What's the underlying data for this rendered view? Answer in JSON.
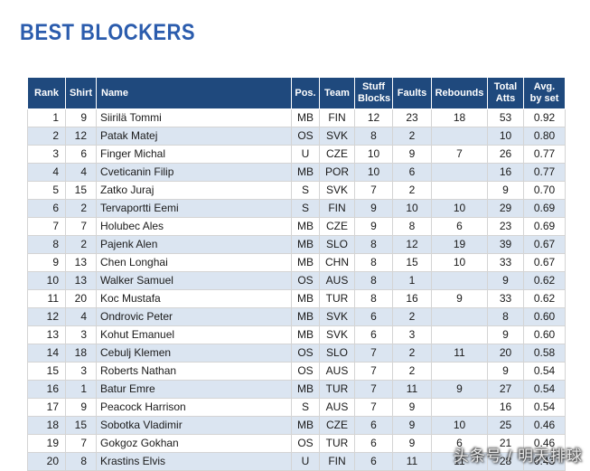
{
  "page_title": "BEST BLOCKERS",
  "colors": {
    "title_blue": "#2b5cad",
    "header_bg": "#1f497d",
    "stripe_bg": "#dbe5f1"
  },
  "table": {
    "columns": [
      "Rank",
      "Shirt",
      "Name",
      "Pos.",
      "Team",
      "Stuff\nBlocks",
      "Faults",
      "Rebounds",
      "Total\nAtts",
      "Avg.\nby set"
    ],
    "rows": [
      {
        "rank": "1",
        "shirt": "9",
        "name": "Siirilä Tommi",
        "pos": "MB",
        "team": "FIN",
        "stuff_blocks": "12",
        "faults": "23",
        "rebounds": "18",
        "total_atts": "53",
        "avg": "0.92"
      },
      {
        "rank": "2",
        "shirt": "12",
        "name": "Patak Matej",
        "pos": "OS",
        "team": "SVK",
        "stuff_blocks": "8",
        "faults": "2",
        "rebounds": "",
        "total_atts": "10",
        "avg": "0.80"
      },
      {
        "rank": "3",
        "shirt": "6",
        "name": "Finger Michal",
        "pos": "U",
        "team": "CZE",
        "stuff_blocks": "10",
        "faults": "9",
        "rebounds": "7",
        "total_atts": "26",
        "avg": "0.77"
      },
      {
        "rank": "4",
        "shirt": "4",
        "name": "Cveticanin Filip",
        "pos": "MB",
        "team": "POR",
        "stuff_blocks": "10",
        "faults": "6",
        "rebounds": "",
        "total_atts": "16",
        "avg": "0.77"
      },
      {
        "rank": "5",
        "shirt": "15",
        "name": "Zatko Juraj",
        "pos": "S",
        "team": "SVK",
        "stuff_blocks": "7",
        "faults": "2",
        "rebounds": "",
        "total_atts": "9",
        "avg": "0.70"
      },
      {
        "rank": "6",
        "shirt": "2",
        "name": "Tervaportti Eemi",
        "pos": "S",
        "team": "FIN",
        "stuff_blocks": "9",
        "faults": "10",
        "rebounds": "10",
        "total_atts": "29",
        "avg": "0.69"
      },
      {
        "rank": "7",
        "shirt": "7",
        "name": "Holubec Ales",
        "pos": "MB",
        "team": "CZE",
        "stuff_blocks": "9",
        "faults": "8",
        "rebounds": "6",
        "total_atts": "23",
        "avg": "0.69"
      },
      {
        "rank": "8",
        "shirt": "2",
        "name": "Pajenk Alen",
        "pos": "MB",
        "team": "SLO",
        "stuff_blocks": "8",
        "faults": "12",
        "rebounds": "19",
        "total_atts": "39",
        "avg": "0.67"
      },
      {
        "rank": "9",
        "shirt": "13",
        "name": "Chen Longhai",
        "pos": "MB",
        "team": "CHN",
        "stuff_blocks": "8",
        "faults": "15",
        "rebounds": "10",
        "total_atts": "33",
        "avg": "0.67"
      },
      {
        "rank": "10",
        "shirt": "13",
        "name": "Walker Samuel",
        "pos": "OS",
        "team": "AUS",
        "stuff_blocks": "8",
        "faults": "1",
        "rebounds": "",
        "total_atts": "9",
        "avg": "0.62"
      },
      {
        "rank": "11",
        "shirt": "20",
        "name": "Koc Mustafa",
        "pos": "MB",
        "team": "TUR",
        "stuff_blocks": "8",
        "faults": "16",
        "rebounds": "9",
        "total_atts": "33",
        "avg": "0.62"
      },
      {
        "rank": "12",
        "shirt": "4",
        "name": "Ondrovic Peter",
        "pos": "MB",
        "team": "SVK",
        "stuff_blocks": "6",
        "faults": "2",
        "rebounds": "",
        "total_atts": "8",
        "avg": "0.60"
      },
      {
        "rank": "13",
        "shirt": "3",
        "name": "Kohut Emanuel",
        "pos": "MB",
        "team": "SVK",
        "stuff_blocks": "6",
        "faults": "3",
        "rebounds": "",
        "total_atts": "9",
        "avg": "0.60"
      },
      {
        "rank": "14",
        "shirt": "18",
        "name": "Cebulj Klemen",
        "pos": "OS",
        "team": "SLO",
        "stuff_blocks": "7",
        "faults": "2",
        "rebounds": "11",
        "total_atts": "20",
        "avg": "0.58"
      },
      {
        "rank": "15",
        "shirt": "3",
        "name": "Roberts Nathan",
        "pos": "OS",
        "team": "AUS",
        "stuff_blocks": "7",
        "faults": "2",
        "rebounds": "",
        "total_atts": "9",
        "avg": "0.54"
      },
      {
        "rank": "16",
        "shirt": "1",
        "name": "Batur Emre",
        "pos": "MB",
        "team": "TUR",
        "stuff_blocks": "7",
        "faults": "11",
        "rebounds": "9",
        "total_atts": "27",
        "avg": "0.54"
      },
      {
        "rank": "17",
        "shirt": "9",
        "name": "Peacock Harrison",
        "pos": "S",
        "team": "AUS",
        "stuff_blocks": "7",
        "faults": "9",
        "rebounds": "",
        "total_atts": "16",
        "avg": "0.54"
      },
      {
        "rank": "18",
        "shirt": "15",
        "name": "Sobotka Vladimir",
        "pos": "MB",
        "team": "CZE",
        "stuff_blocks": "6",
        "faults": "9",
        "rebounds": "10",
        "total_atts": "25",
        "avg": "0.46"
      },
      {
        "rank": "19",
        "shirt": "7",
        "name": "Gokgoz Gokhan",
        "pos": "OS",
        "team": "TUR",
        "stuff_blocks": "6",
        "faults": "9",
        "rebounds": "6",
        "total_atts": "21",
        "avg": "0.46"
      },
      {
        "rank": "20",
        "shirt": "8",
        "name": "Krastins Elvis",
        "pos": "U",
        "team": "FIN",
        "stuff_blocks": "6",
        "faults": "11",
        "rebounds": "11",
        "total_atts": "28",
        "avg": "0.43"
      }
    ]
  },
  "watermark": "头条号 / 明天排球"
}
